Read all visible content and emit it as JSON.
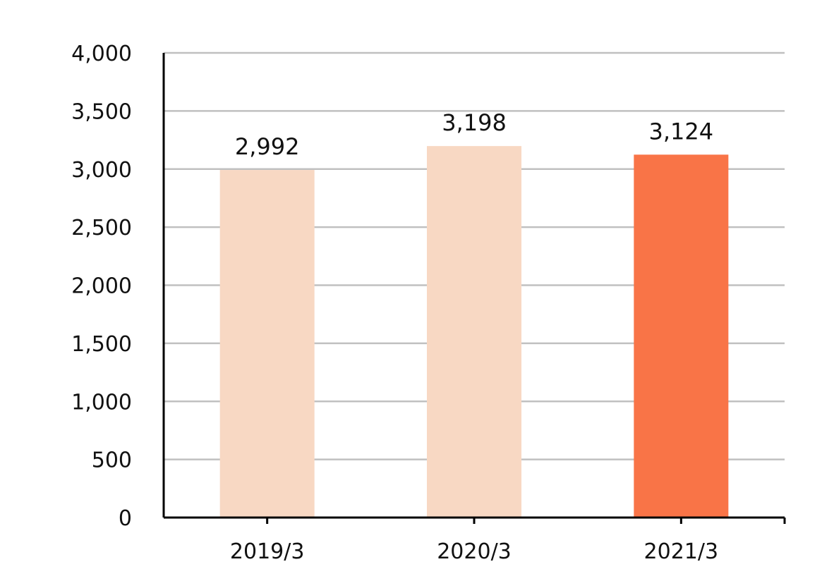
{
  "chart_data": {
    "type": "bar",
    "categories": [
      "2019/3",
      "2020/3",
      "2021/3"
    ],
    "values": [
      2992,
      3198,
      3124
    ],
    "value_labels": [
      "2,992",
      "3,198",
      "3,124"
    ],
    "title": "",
    "xlabel": "",
    "ylabel": "",
    "ylim": [
      0,
      4000
    ],
    "yticks": [
      0,
      500,
      1000,
      1500,
      2000,
      2500,
      3000,
      3500,
      4000
    ],
    "ytick_labels": [
      "0",
      "500",
      "1,000",
      "1,500",
      "2,000",
      "2,500",
      "3,000",
      "3,500",
      "4,000"
    ],
    "grid": true,
    "legend": "none",
    "colors": {
      "bar_default": "#f8d8c3",
      "bar_highlight": "#f97447",
      "grid": "#c0c0c0",
      "axis": "#000000"
    },
    "highlight_index": 2
  }
}
